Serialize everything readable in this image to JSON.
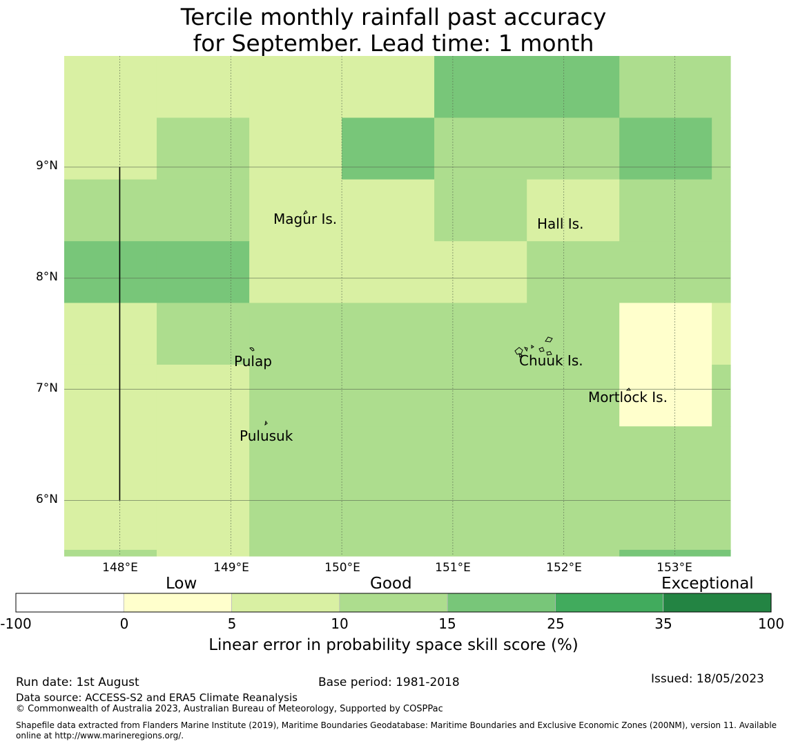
{
  "title": {
    "line1": "Tercile monthly rainfall past accuracy",
    "line2": "for September. Lead time: 1 month"
  },
  "map": {
    "lon_ticks": [
      "148°E",
      "149°E",
      "150°E",
      "151°E",
      "152°E",
      "153°E"
    ],
    "lat_ticks": [
      "9°N",
      "8°N",
      "7°N",
      "6°N"
    ],
    "lon_values": [
      148,
      149,
      150,
      151,
      152,
      153
    ],
    "lat_values": [
      9,
      8,
      7,
      6
    ],
    "extent": {
      "lon_min": 147.5,
      "lon_max": 153.5,
      "lat_min": 5.5,
      "lat_max": 10.0
    },
    "boundary_line": {
      "lon": 148,
      "lat_from": 6,
      "lat_to": 9
    },
    "places": [
      {
        "name": "Magur Is."
      },
      {
        "name": "Hall Is."
      },
      {
        "name": "Pulap"
      },
      {
        "name": "Chuuk Is."
      },
      {
        "name": "Mortlock Is."
      },
      {
        "name": "Pulusuk"
      }
    ],
    "grid": {
      "lon_edges": [
        147.5,
        148.333,
        149.167,
        150.0,
        150.833,
        151.667,
        152.5,
        153.333,
        153.5
      ],
      "lat_edges": [
        10.0,
        9.444,
        8.889,
        8.333,
        7.778,
        7.222,
        6.667,
        6.111,
        5.556,
        5.5
      ],
      "categories": [
        [
          2,
          2,
          2,
          2,
          4,
          4,
          3,
          3
        ],
        [
          2,
          3,
          2,
          4,
          3,
          3,
          4,
          3
        ],
        [
          3,
          3,
          2,
          2,
          3,
          2,
          3,
          3
        ],
        [
          4,
          4,
          2,
          2,
          2,
          3,
          3,
          3
        ],
        [
          2,
          3,
          3,
          3,
          3,
          3,
          1,
          2
        ],
        [
          2,
          2,
          3,
          3,
          3,
          3,
          1,
          3
        ],
        [
          2,
          2,
          3,
          3,
          3,
          3,
          3,
          3
        ],
        [
          2,
          2,
          3,
          3,
          3,
          3,
          3,
          3
        ],
        [
          3,
          2,
          3,
          3,
          3,
          3,
          4,
          4
        ]
      ]
    }
  },
  "legend": {
    "categories": [
      "Low",
      "Good",
      "Exceptional"
    ],
    "ticks": [
      "-100",
      "0",
      "5",
      "10",
      "15",
      "25",
      "35",
      "100"
    ],
    "colors": [
      "#ffffff",
      "#ffffcc",
      "#d9f0a3",
      "#addd8e",
      "#78c679",
      "#41ab5d",
      "#238443"
    ],
    "label": "Linear error in probability space skill score (%)"
  },
  "footer": {
    "run_date": "Run date: 1st August",
    "base_period": "Base period: 1981-2018",
    "issued": "Issued: 18/05/2023",
    "data_source": "Data source: ACCESS-S2 and ERA5 Climate Reanalysis",
    "copyright": "© Commonwealth of Australia 2023, Australian Bureau of Meteorology, Supported by COSPPac",
    "shapefile_line1": "Shapefile data extracted from Flanders Marine Institute (2019), Maritime Boundaries Geodatabase: Maritime Boundaries and Exclusive Economic Zones (200NM), version 11. Available",
    "shapefile_line2": "online at http://www.marineregions.org/."
  }
}
